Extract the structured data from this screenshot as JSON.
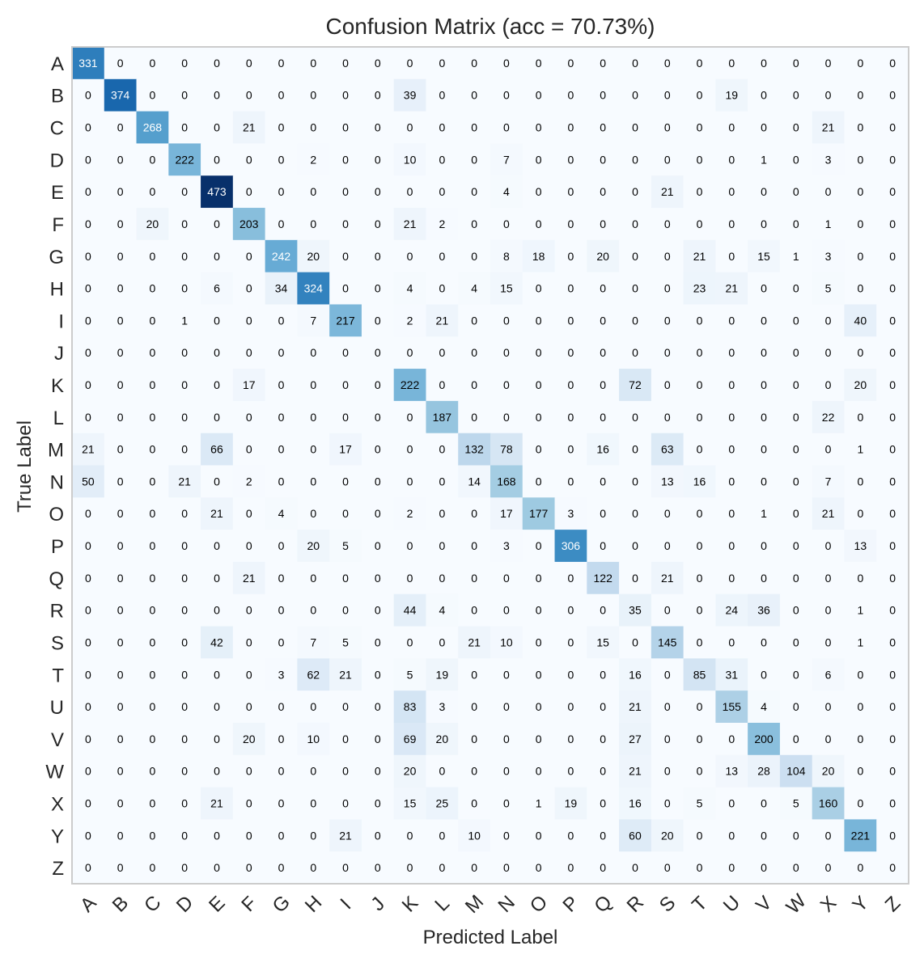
{
  "chart_data": {
    "type": "heatmap",
    "title": "Confusion Matrix (acc = 70.73%)",
    "xlabel": "Predicted Label",
    "ylabel": "True Label",
    "x_categories": [
      "A",
      "B",
      "C",
      "D",
      "E",
      "F",
      "G",
      "H",
      "I",
      "J",
      "K",
      "L",
      "M",
      "N",
      "O",
      "P",
      "Q",
      "R",
      "S",
      "T",
      "U",
      "V",
      "W",
      "X",
      "Y",
      "Z"
    ],
    "y_categories": [
      "A",
      "B",
      "C",
      "D",
      "E",
      "F",
      "G",
      "H",
      "I",
      "J",
      "K",
      "L",
      "M",
      "N",
      "O",
      "P",
      "Q",
      "R",
      "S",
      "T",
      "U",
      "V",
      "W",
      "X",
      "Y",
      "Z"
    ],
    "values": [
      [
        331,
        0,
        0,
        0,
        0,
        0,
        0,
        0,
        0,
        0,
        0,
        0,
        0,
        0,
        0,
        0,
        0,
        0,
        0,
        0,
        0,
        0,
        0,
        0,
        0,
        0
      ],
      [
        0,
        374,
        0,
        0,
        0,
        0,
        0,
        0,
        0,
        0,
        39,
        0,
        0,
        0,
        0,
        0,
        0,
        0,
        0,
        0,
        19,
        0,
        0,
        0,
        0,
        0
      ],
      [
        0,
        0,
        268,
        0,
        0,
        21,
        0,
        0,
        0,
        0,
        0,
        0,
        0,
        0,
        0,
        0,
        0,
        0,
        0,
        0,
        0,
        0,
        0,
        21,
        0,
        0
      ],
      [
        0,
        0,
        0,
        222,
        0,
        0,
        0,
        2,
        0,
        0,
        10,
        0,
        0,
        7,
        0,
        0,
        0,
        0,
        0,
        0,
        0,
        1,
        0,
        3,
        0,
        0
      ],
      [
        0,
        0,
        0,
        0,
        473,
        0,
        0,
        0,
        0,
        0,
        0,
        0,
        0,
        4,
        0,
        0,
        0,
        0,
        21,
        0,
        0,
        0,
        0,
        0,
        0,
        0
      ],
      [
        0,
        0,
        20,
        0,
        0,
        203,
        0,
        0,
        0,
        0,
        21,
        2,
        0,
        0,
        0,
        0,
        0,
        0,
        0,
        0,
        0,
        0,
        0,
        1,
        0,
        0
      ],
      [
        0,
        0,
        0,
        0,
        0,
        0,
        242,
        20,
        0,
        0,
        0,
        0,
        0,
        8,
        18,
        0,
        20,
        0,
        0,
        21,
        0,
        15,
        1,
        3,
        0,
        0
      ],
      [
        0,
        0,
        0,
        0,
        6,
        0,
        34,
        324,
        0,
        0,
        4,
        0,
        4,
        15,
        0,
        0,
        0,
        0,
        0,
        23,
        21,
        0,
        0,
        5,
        0,
        0
      ],
      [
        0,
        0,
        0,
        1,
        0,
        0,
        0,
        7,
        217,
        0,
        2,
        21,
        0,
        0,
        0,
        0,
        0,
        0,
        0,
        0,
        0,
        0,
        0,
        0,
        40,
        0
      ],
      [
        0,
        0,
        0,
        0,
        0,
        0,
        0,
        0,
        0,
        0,
        0,
        0,
        0,
        0,
        0,
        0,
        0,
        0,
        0,
        0,
        0,
        0,
        0,
        0,
        0,
        0
      ],
      [
        0,
        0,
        0,
        0,
        0,
        17,
        0,
        0,
        0,
        0,
        222,
        0,
        0,
        0,
        0,
        0,
        0,
        72,
        0,
        0,
        0,
        0,
        0,
        0,
        20,
        0
      ],
      [
        0,
        0,
        0,
        0,
        0,
        0,
        0,
        0,
        0,
        0,
        0,
        187,
        0,
        0,
        0,
        0,
        0,
        0,
        0,
        0,
        0,
        0,
        0,
        22,
        0,
        0
      ],
      [
        21,
        0,
        0,
        0,
        66,
        0,
        0,
        0,
        17,
        0,
        0,
        0,
        132,
        78,
        0,
        0,
        16,
        0,
        63,
        0,
        0,
        0,
        0,
        0,
        1,
        0
      ],
      [
        50,
        0,
        0,
        21,
        0,
        2,
        0,
        0,
        0,
        0,
        0,
        0,
        14,
        168,
        0,
        0,
        0,
        0,
        13,
        16,
        0,
        0,
        0,
        7,
        0,
        0
      ],
      [
        0,
        0,
        0,
        0,
        21,
        0,
        4,
        0,
        0,
        0,
        2,
        0,
        0,
        17,
        177,
        3,
        0,
        0,
        0,
        0,
        0,
        1,
        0,
        21,
        0,
        0
      ],
      [
        0,
        0,
        0,
        0,
        0,
        0,
        0,
        20,
        5,
        0,
        0,
        0,
        0,
        3,
        0,
        306,
        0,
        0,
        0,
        0,
        0,
        0,
        0,
        0,
        13,
        0
      ],
      [
        0,
        0,
        0,
        0,
        0,
        21,
        0,
        0,
        0,
        0,
        0,
        0,
        0,
        0,
        0,
        0,
        122,
        0,
        21,
        0,
        0,
        0,
        0,
        0,
        0,
        0
      ],
      [
        0,
        0,
        0,
        0,
        0,
        0,
        0,
        0,
        0,
        0,
        44,
        4,
        0,
        0,
        0,
        0,
        0,
        35,
        0,
        0,
        24,
        36,
        0,
        0,
        1,
        0
      ],
      [
        0,
        0,
        0,
        0,
        42,
        0,
        0,
        7,
        5,
        0,
        0,
        0,
        21,
        10,
        0,
        0,
        15,
        0,
        145,
        0,
        0,
        0,
        0,
        0,
        1,
        0
      ],
      [
        0,
        0,
        0,
        0,
        0,
        0,
        3,
        62,
        21,
        0,
        5,
        19,
        0,
        0,
        0,
        0,
        0,
        16,
        0,
        85,
        31,
        0,
        0,
        6,
        0,
        0
      ],
      [
        0,
        0,
        0,
        0,
        0,
        0,
        0,
        0,
        0,
        0,
        83,
        3,
        0,
        0,
        0,
        0,
        0,
        21,
        0,
        0,
        155,
        4,
        0,
        0,
        0,
        0
      ],
      [
        0,
        0,
        0,
        0,
        0,
        20,
        0,
        10,
        0,
        0,
        69,
        20,
        0,
        0,
        0,
        0,
        0,
        27,
        0,
        0,
        0,
        200,
        0,
        0,
        0,
        0
      ],
      [
        0,
        0,
        0,
        0,
        0,
        0,
        0,
        0,
        0,
        0,
        20,
        0,
        0,
        0,
        0,
        0,
        0,
        21,
        0,
        0,
        13,
        28,
        104,
        20,
        0,
        0
      ],
      [
        0,
        0,
        0,
        0,
        21,
        0,
        0,
        0,
        0,
        0,
        15,
        25,
        0,
        0,
        1,
        19,
        0,
        16,
        0,
        5,
        0,
        0,
        5,
        160,
        0,
        0
      ],
      [
        0,
        0,
        0,
        0,
        0,
        0,
        0,
        0,
        21,
        0,
        0,
        0,
        10,
        0,
        0,
        0,
        0,
        60,
        20,
        0,
        0,
        0,
        0,
        0,
        221,
        0
      ],
      [
        0,
        0,
        0,
        0,
        0,
        0,
        0,
        0,
        0,
        0,
        0,
        0,
        0,
        0,
        0,
        0,
        0,
        0,
        0,
        0,
        0,
        0,
        0,
        0,
        0,
        0
      ]
    ],
    "vmin": 0,
    "vmax": 473,
    "colormap": "Blues",
    "grid": false,
    "colors": {
      "low": "#f7fbff",
      "high": "#08306b",
      "frame": "#cccccc",
      "text_dark": "#000000",
      "text_light": "#ffffff"
    }
  }
}
